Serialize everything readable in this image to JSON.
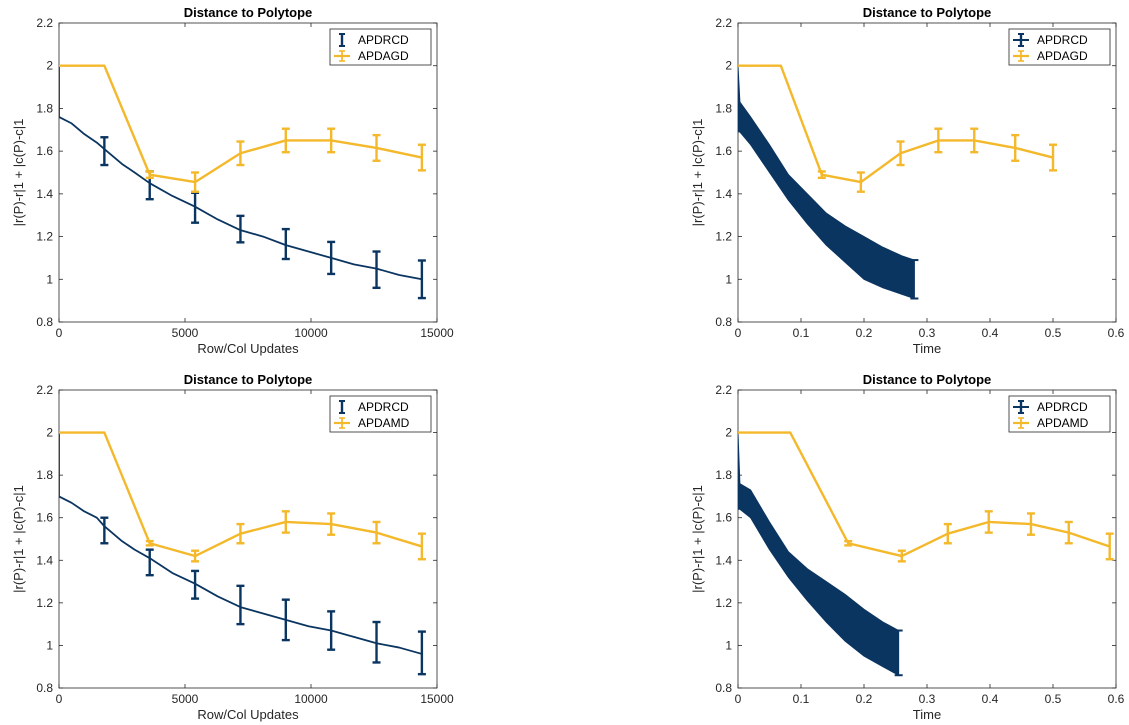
{
  "colors": {
    "apdrcd": "#0b3561",
    "apdagd": "#f4b82b",
    "axis": "#262626"
  },
  "chart_data": [
    {
      "type": "line",
      "title": "Distance to Polytope",
      "xlabel": "Row/Col Updates",
      "ylabel": "|r(P)-r|1 + |c(P)-c|1",
      "xlim": [
        0,
        15000
      ],
      "ylim": [
        0.8,
        2.2
      ],
      "xticks": [
        "0",
        "5000",
        "10000",
        "15000"
      ],
      "yticks": [
        "0.8",
        "1",
        "1.2",
        "1.4",
        "1.6",
        "1.8",
        "2",
        "2.2"
      ],
      "legend_position": "top-right",
      "series": [
        {
          "name": "APDRCD",
          "style": "errorbar-curve",
          "curve_x": [
            0,
            0,
            500,
            1000,
            1500,
            1800,
            2500,
            3000,
            3600,
            4500,
            5400,
            6300,
            7200,
            8100,
            9000,
            9900,
            10800,
            11700,
            12600,
            13500,
            14400
          ],
          "curve_y": [
            2.0,
            1.76,
            1.73,
            1.68,
            1.64,
            1.61,
            1.54,
            1.5,
            1.45,
            1.39,
            1.34,
            1.28,
            1.23,
            1.2,
            1.16,
            1.13,
            1.1,
            1.07,
            1.05,
            1.02,
            1.0
          ],
          "points": [
            {
              "x": 1800,
              "y": 1.6,
              "err": 0.065
            },
            {
              "x": 3600,
              "y": 1.44,
              "err": 0.065
            },
            {
              "x": 5400,
              "y": 1.335,
              "err": 0.07
            },
            {
              "x": 7200,
              "y": 1.235,
              "err": 0.062
            },
            {
              "x": 9000,
              "y": 1.165,
              "err": 0.07
            },
            {
              "x": 10800,
              "y": 1.1,
              "err": 0.075
            },
            {
              "x": 12600,
              "y": 1.045,
              "err": 0.085
            },
            {
              "x": 14400,
              "y": 1.0,
              "err": 0.088
            }
          ]
        },
        {
          "name": "APDAGD",
          "style": "errorbar-line",
          "curve_x": [
            0,
            1800
          ],
          "curve_y": [
            2.0,
            2.0
          ],
          "points": [
            {
              "x": 3600,
              "y": 1.49,
              "err": 0.015
            },
            {
              "x": 5400,
              "y": 1.455,
              "err": 0.045
            },
            {
              "x": 7200,
              "y": 1.59,
              "err": 0.055
            },
            {
              "x": 9000,
              "y": 1.65,
              "err": 0.055
            },
            {
              "x": 10800,
              "y": 1.65,
              "err": 0.055
            },
            {
              "x": 12600,
              "y": 1.615,
              "err": 0.06
            },
            {
              "x": 14400,
              "y": 1.57,
              "err": 0.06
            }
          ]
        }
      ]
    },
    {
      "type": "line",
      "title": "Distance to Polytope",
      "xlabel": "Time",
      "ylabel": "|r(P)-r|1 + |c(P)-c|1",
      "xlim": [
        0,
        0.6
      ],
      "ylim": [
        0.8,
        2.2
      ],
      "xticks": [
        "0",
        "0.1",
        "0.2",
        "0.3",
        "0.4",
        "0.5",
        "0.6"
      ],
      "yticks": [
        "0.8",
        "1",
        "1.2",
        "1.4",
        "1.6",
        "1.8",
        "2",
        "2.2"
      ],
      "legend_position": "top-right",
      "series": [
        {
          "name": "APDRCD",
          "style": "band",
          "band_x": [
            0,
            0.003,
            0.02,
            0.05,
            0.08,
            0.11,
            0.14,
            0.17,
            0.2,
            0.23,
            0.26,
            0.28
          ],
          "band_upper": [
            2.0,
            1.83,
            1.76,
            1.63,
            1.49,
            1.4,
            1.31,
            1.25,
            1.2,
            1.15,
            1.11,
            1.09
          ],
          "band_lower": [
            1.69,
            1.69,
            1.63,
            1.5,
            1.37,
            1.26,
            1.16,
            1.08,
            1.0,
            0.96,
            0.93,
            0.91
          ]
        },
        {
          "name": "APDAGD",
          "style": "errorbar-line",
          "curve_x": [
            0,
            0.068
          ],
          "curve_y": [
            2.0,
            2.0
          ],
          "points": [
            {
              "x": 0.133,
              "y": 1.49,
              "err": 0.015
            },
            {
              "x": 0.195,
              "y": 1.455,
              "err": 0.045
            },
            {
              "x": 0.258,
              "y": 1.59,
              "err": 0.055
            },
            {
              "x": 0.318,
              "y": 1.65,
              "err": 0.055
            },
            {
              "x": 0.375,
              "y": 1.65,
              "err": 0.055
            },
            {
              "x": 0.44,
              "y": 1.615,
              "err": 0.06
            },
            {
              "x": 0.5,
              "y": 1.57,
              "err": 0.06
            }
          ]
        }
      ]
    },
    {
      "type": "line",
      "title": "Distance to Polytope",
      "xlabel": "Row/Col Updates",
      "ylabel": "|r(P)-r|1 + |c(P)-c|1",
      "xlim": [
        0,
        15000
      ],
      "ylim": [
        0.8,
        2.2
      ],
      "xticks": [
        "0",
        "5000",
        "10000",
        "15000"
      ],
      "yticks": [
        "0.8",
        "1",
        "1.2",
        "1.4",
        "1.6",
        "1.8",
        "2",
        "2.2"
      ],
      "legend_position": "top-right",
      "series": [
        {
          "name": "APDRCD",
          "style": "errorbar-curve",
          "curve_x": [
            0,
            0,
            500,
            1000,
            1500,
            1800,
            2500,
            3000,
            3600,
            4500,
            5400,
            6300,
            7200,
            8100,
            9000,
            9900,
            10800,
            11700,
            12600,
            13500,
            14400
          ],
          "curve_y": [
            2.0,
            1.7,
            1.67,
            1.63,
            1.6,
            1.56,
            1.49,
            1.45,
            1.41,
            1.34,
            1.29,
            1.23,
            1.18,
            1.15,
            1.12,
            1.09,
            1.07,
            1.04,
            1.01,
            0.99,
            0.96
          ],
          "points": [
            {
              "x": 1800,
              "y": 1.54,
              "err": 0.06
            },
            {
              "x": 3600,
              "y": 1.39,
              "err": 0.06
            },
            {
              "x": 5400,
              "y": 1.285,
              "err": 0.065
            },
            {
              "x": 7200,
              "y": 1.19,
              "err": 0.09
            },
            {
              "x": 9000,
              "y": 1.12,
              "err": 0.095
            },
            {
              "x": 10800,
              "y": 1.07,
              "err": 0.09
            },
            {
              "x": 12600,
              "y": 1.015,
              "err": 0.095
            },
            {
              "x": 14400,
              "y": 0.965,
              "err": 0.1
            }
          ]
        },
        {
          "name": "APDAMD",
          "style": "errorbar-line",
          "curve_x": [
            0,
            1800
          ],
          "curve_y": [
            2.0,
            2.0
          ],
          "points": [
            {
              "x": 3600,
              "y": 1.48,
              "err": 0.01
            },
            {
              "x": 5400,
              "y": 1.42,
              "err": 0.025
            },
            {
              "x": 7200,
              "y": 1.525,
              "err": 0.045
            },
            {
              "x": 9000,
              "y": 1.58,
              "err": 0.05
            },
            {
              "x": 10800,
              "y": 1.57,
              "err": 0.05
            },
            {
              "x": 12600,
              "y": 1.53,
              "err": 0.05
            },
            {
              "x": 14400,
              "y": 1.465,
              "err": 0.06
            }
          ]
        }
      ]
    },
    {
      "type": "line",
      "title": "Distance to Polytope",
      "xlabel": "Time",
      "ylabel": "|r(P)-r|1 + |c(P)-c|1",
      "xlim": [
        0,
        0.6
      ],
      "ylim": [
        0.8,
        2.2
      ],
      "xticks": [
        "0",
        "0.1",
        "0.2",
        "0.3",
        "0.4",
        "0.5",
        "0.6"
      ],
      "yticks": [
        "0.8",
        "1",
        "1.2",
        "1.4",
        "1.6",
        "1.8",
        "2",
        "2.2"
      ],
      "legend_position": "top-right",
      "series": [
        {
          "name": "APDRCD",
          "style": "band",
          "band_x": [
            0,
            0.003,
            0.02,
            0.05,
            0.08,
            0.11,
            0.14,
            0.17,
            0.2,
            0.23,
            0.255
          ],
          "band_upper": [
            2.0,
            1.76,
            1.73,
            1.58,
            1.44,
            1.36,
            1.3,
            1.24,
            1.17,
            1.11,
            1.07
          ],
          "band_lower": [
            1.64,
            1.64,
            1.6,
            1.45,
            1.32,
            1.21,
            1.11,
            1.02,
            0.95,
            0.9,
            0.86
          ]
        },
        {
          "name": "APDAMD",
          "style": "errorbar-line",
          "curve_x": [
            0,
            0.083
          ],
          "curve_y": [
            2.0,
            2.0
          ],
          "points": [
            {
              "x": 0.175,
              "y": 1.48,
              "err": 0.01
            },
            {
              "x": 0.26,
              "y": 1.42,
              "err": 0.025
            },
            {
              "x": 0.333,
              "y": 1.525,
              "err": 0.045
            },
            {
              "x": 0.398,
              "y": 1.58,
              "err": 0.05
            },
            {
              "x": 0.465,
              "y": 1.57,
              "err": 0.05
            },
            {
              "x": 0.525,
              "y": 1.53,
              "err": 0.05
            },
            {
              "x": 0.59,
              "y": 1.465,
              "err": 0.06
            }
          ]
        }
      ]
    }
  ]
}
